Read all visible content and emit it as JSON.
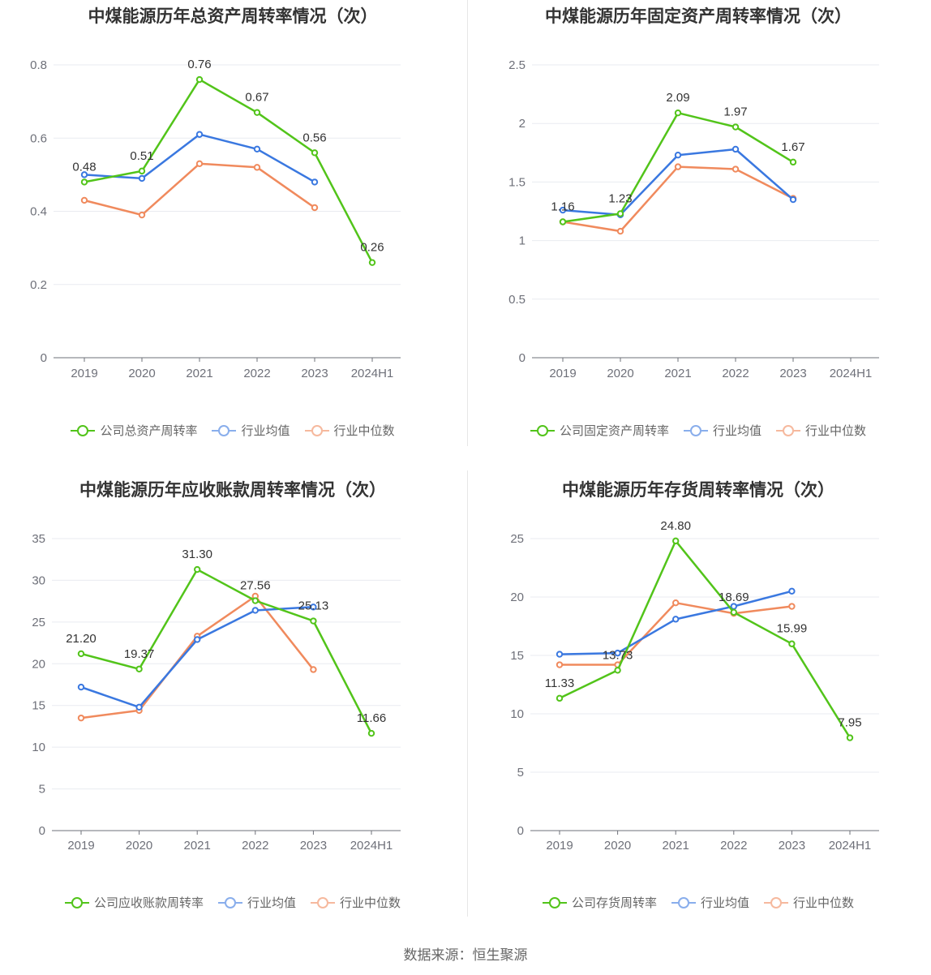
{
  "source": "数据来源：恒生聚源",
  "colors": {
    "company": "#52c41a",
    "avg": "#3a78e0",
    "median": "#f08a5d",
    "grid": "#e9ebf0",
    "axis": "#6e7079"
  },
  "chart_data": [
    {
      "type": "line",
      "title": "中煤能源历年总资产周转率情况（次）",
      "categories": [
        "2019",
        "2020",
        "2021",
        "2022",
        "2023",
        "2024H1"
      ],
      "ylim": [
        0,
        0.8
      ],
      "yticks": [
        0,
        0.2,
        0.4,
        0.6,
        0.8
      ],
      "ytick_labels": [
        "0",
        "0.2",
        "0.4",
        "0.6",
        "0.8"
      ],
      "series": [
        {
          "name": "公司总资产周转率",
          "key": "company",
          "values": [
            0.48,
            0.51,
            0.76,
            0.67,
            0.56,
            0.26
          ],
          "labels": [
            "0.48",
            "0.51",
            "0.76",
            "0.67",
            "0.56",
            "0.26"
          ]
        },
        {
          "name": "行业均值",
          "key": "avg",
          "values": [
            0.5,
            0.49,
            0.61,
            0.57,
            0.48,
            null
          ]
        },
        {
          "name": "行业中位数",
          "key": "median",
          "values": [
            0.43,
            0.39,
            0.53,
            0.52,
            0.41,
            null
          ]
        }
      ]
    },
    {
      "type": "line",
      "title": "中煤能源历年固定资产周转率情况（次）",
      "categories": [
        "2019",
        "2020",
        "2021",
        "2022",
        "2023",
        "2024H1"
      ],
      "ylim": [
        0,
        2.5
      ],
      "yticks": [
        0,
        0.5,
        1,
        1.5,
        2,
        2.5
      ],
      "ytick_labels": [
        "0",
        "0.5",
        "1",
        "1.5",
        "2",
        "2.5"
      ],
      "series": [
        {
          "name": "公司固定资产周转率",
          "key": "company",
          "values": [
            1.16,
            1.23,
            2.09,
            1.97,
            1.67,
            null
          ],
          "labels": [
            "1.16",
            "1.23",
            "2.09",
            "1.97",
            "1.67",
            ""
          ]
        },
        {
          "name": "行业均值",
          "key": "avg",
          "values": [
            1.26,
            1.22,
            1.73,
            1.78,
            1.35,
            null
          ]
        },
        {
          "name": "行业中位数",
          "key": "median",
          "values": [
            1.16,
            1.08,
            1.63,
            1.61,
            1.36,
            null
          ]
        }
      ]
    },
    {
      "type": "line",
      "title": "中煤能源历年应收账款周转率情况（次）",
      "categories": [
        "2019",
        "2020",
        "2021",
        "2022",
        "2023",
        "2024H1"
      ],
      "ylim": [
        0,
        35
      ],
      "yticks": [
        0,
        5,
        10,
        15,
        20,
        25,
        30,
        35
      ],
      "ytick_labels": [
        "0",
        "5",
        "10",
        "15",
        "20",
        "25",
        "30",
        "35"
      ],
      "series": [
        {
          "name": "公司应收账款周转率",
          "key": "company",
          "values": [
            21.2,
            19.37,
            31.3,
            27.56,
            25.13,
            11.66
          ],
          "labels": [
            "21.20",
            "19.37",
            "31.30",
            "27.56",
            "25.13",
            "11.66"
          ]
        },
        {
          "name": "行业均值",
          "key": "avg",
          "values": [
            17.2,
            14.8,
            22.9,
            26.4,
            26.8,
            null
          ]
        },
        {
          "name": "行业中位数",
          "key": "median",
          "values": [
            13.5,
            14.4,
            23.3,
            28.1,
            19.3,
            null
          ]
        }
      ]
    },
    {
      "type": "line",
      "title": "中煤能源历年存货周转率情况（次）",
      "categories": [
        "2019",
        "2020",
        "2021",
        "2022",
        "2023",
        "2024H1"
      ],
      "ylim": [
        0,
        25
      ],
      "yticks": [
        0,
        5,
        10,
        15,
        20,
        25
      ],
      "ytick_labels": [
        "0",
        "5",
        "10",
        "15",
        "20",
        "25"
      ],
      "series": [
        {
          "name": "公司存货周转率",
          "key": "company",
          "values": [
            11.33,
            13.73,
            24.8,
            18.69,
            15.99,
            7.95
          ],
          "labels": [
            "11.33",
            "13.73",
            "24.80",
            "18.69",
            "15.99",
            "7.95"
          ]
        },
        {
          "name": "行业均值",
          "key": "avg",
          "values": [
            15.1,
            15.2,
            18.1,
            19.2,
            20.5,
            null
          ]
        },
        {
          "name": "行业中位数",
          "key": "median",
          "values": [
            14.2,
            14.2,
            19.5,
            18.6,
            19.2,
            null
          ]
        }
      ]
    }
  ]
}
